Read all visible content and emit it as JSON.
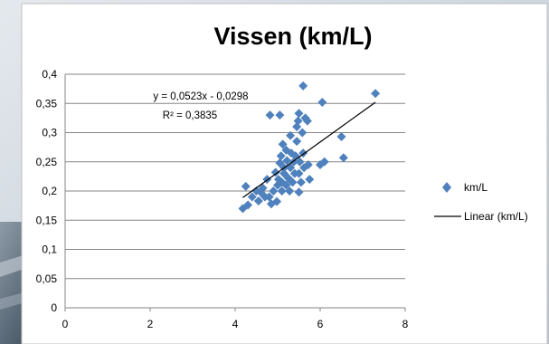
{
  "chart_data": {
    "type": "scatter",
    "title": "Vissen (km/L)",
    "xlabel": "",
    "ylabel": "",
    "xlim": [
      0,
      8
    ],
    "ylim": [
      0,
      0.4
    ],
    "xticks": [
      "0",
      "2",
      "4",
      "6",
      "8"
    ],
    "yticks": [
      "0",
      "0,05",
      "0,1",
      "0,15",
      "0,2",
      "0,25",
      "0,3",
      "0,35",
      "0,4"
    ],
    "grid": "horizontal",
    "legend_position": "right",
    "series": [
      {
        "name": "km/L",
        "color": "#4f81bd",
        "marker": "diamond",
        "points": [
          [
            4.18,
            0.17
          ],
          [
            4.25,
            0.208
          ],
          [
            4.3,
            0.176
          ],
          [
            4.4,
            0.19
          ],
          [
            4.5,
            0.2
          ],
          [
            4.55,
            0.183
          ],
          [
            4.6,
            0.198
          ],
          [
            4.65,
            0.205
          ],
          [
            4.7,
            0.19
          ],
          [
            4.75,
            0.22
          ],
          [
            4.8,
            0.19
          ],
          [
            4.82,
            0.33
          ],
          [
            4.85,
            0.178
          ],
          [
            4.9,
            0.2
          ],
          [
            4.95,
            0.232
          ],
          [
            4.98,
            0.182
          ],
          [
            5.0,
            0.21
          ],
          [
            5.02,
            0.22
          ],
          [
            5.05,
            0.33
          ],
          [
            5.05,
            0.248
          ],
          [
            5.08,
            0.26
          ],
          [
            5.1,
            0.2
          ],
          [
            5.1,
            0.215
          ],
          [
            5.12,
            0.28
          ],
          [
            5.15,
            0.24
          ],
          [
            5.15,
            0.23
          ],
          [
            5.2,
            0.27
          ],
          [
            5.2,
            0.21
          ],
          [
            5.22,
            0.252
          ],
          [
            5.25,
            0.222
          ],
          [
            5.28,
            0.2
          ],
          [
            5.3,
            0.24
          ],
          [
            5.3,
            0.295
          ],
          [
            5.32,
            0.265
          ],
          [
            5.35,
            0.215
          ],
          [
            5.38,
            0.25
          ],
          [
            5.4,
            0.23
          ],
          [
            5.42,
            0.26
          ],
          [
            5.45,
            0.285
          ],
          [
            5.45,
            0.31
          ],
          [
            5.48,
            0.32
          ],
          [
            5.5,
            0.333
          ],
          [
            5.5,
            0.23
          ],
          [
            5.5,
            0.198
          ],
          [
            5.52,
            0.25
          ],
          [
            5.55,
            0.215
          ],
          [
            5.58,
            0.3
          ],
          [
            5.6,
            0.38
          ],
          [
            5.6,
            0.265
          ],
          [
            5.62,
            0.24
          ],
          [
            5.65,
            0.325
          ],
          [
            5.7,
            0.32
          ],
          [
            5.72,
            0.245
          ],
          [
            5.75,
            0.22
          ],
          [
            6.0,
            0.245
          ],
          [
            6.05,
            0.352
          ],
          [
            6.1,
            0.25
          ],
          [
            6.5,
            0.293
          ],
          [
            6.55,
            0.257
          ],
          [
            7.3,
            0.367
          ]
        ]
      }
    ],
    "trendline": {
      "name": "Linear (km/L)",
      "color": "#000000",
      "slope": 0.0523,
      "intercept": -0.0298,
      "x_range": [
        4.18,
        7.3
      ],
      "equation_text": "y = 0,0523x - 0,0298",
      "r2_text": "R² = 0,3835"
    },
    "legend": [
      {
        "label": "km/L",
        "marker": "diamond",
        "color": "#4f81bd"
      },
      {
        "label": "Linear (km/L)",
        "marker": "line",
        "color": "#000000"
      }
    ]
  }
}
